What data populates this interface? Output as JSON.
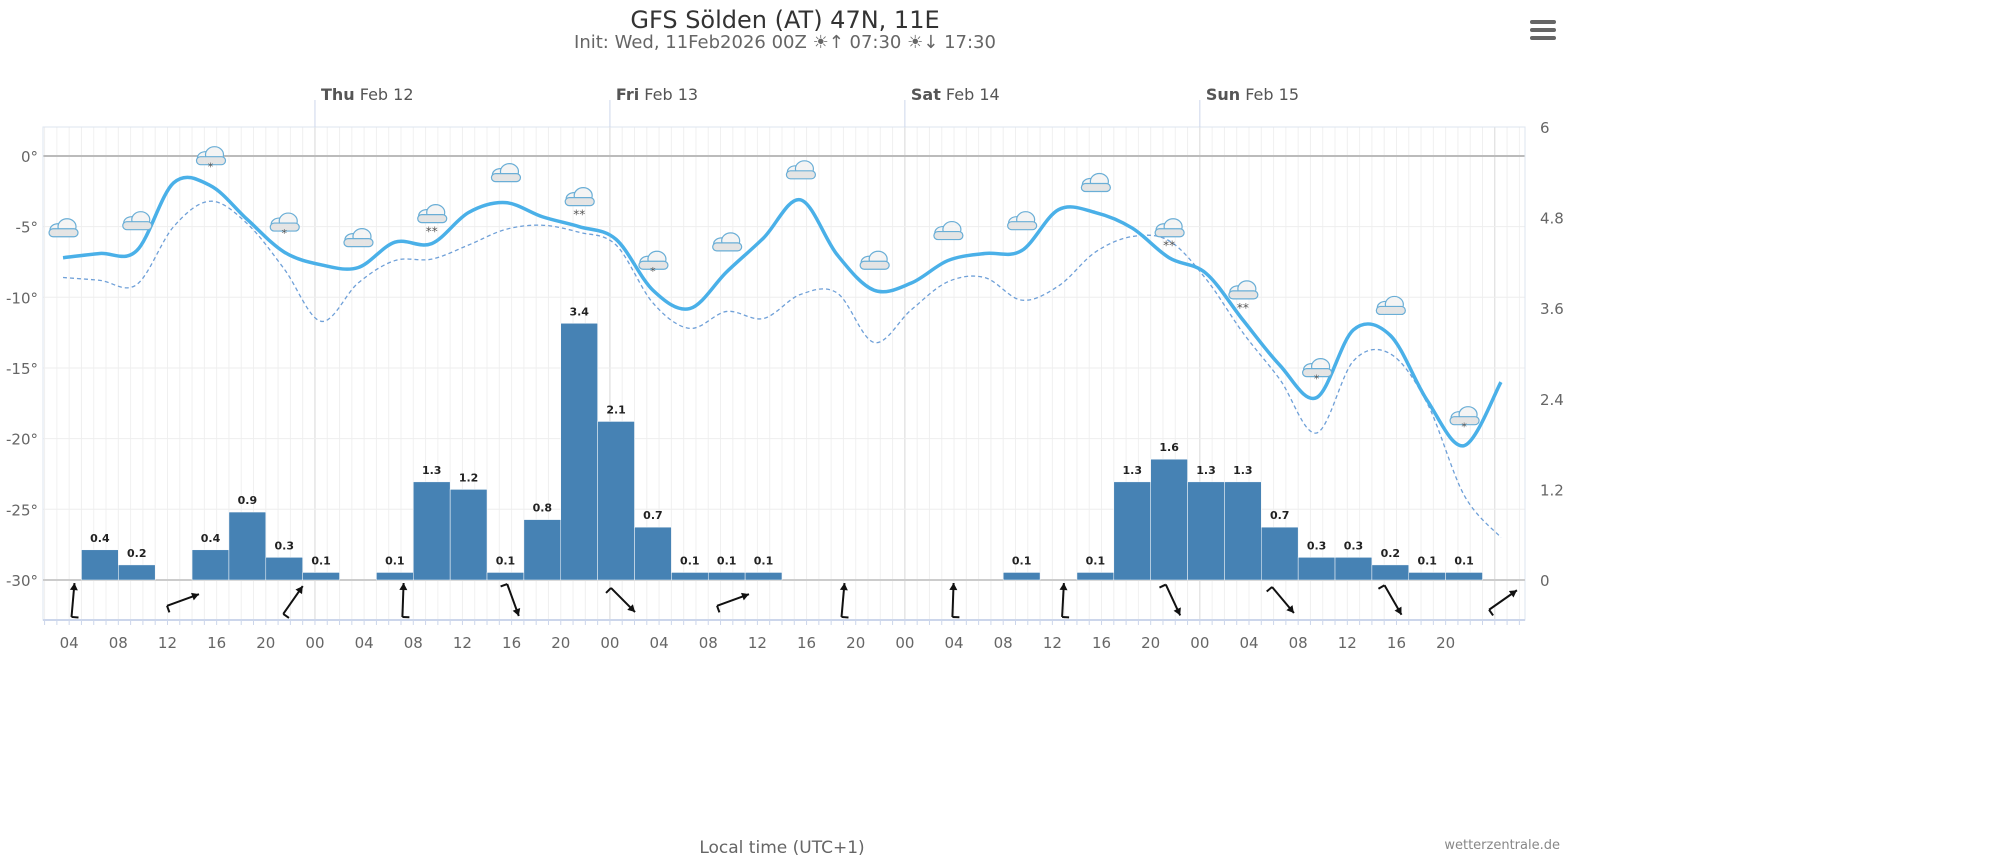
{
  "header": {
    "title": "GFS Sölden (AT) 47N, 11E",
    "init": "Init: Wed, 11Feb2026 00Z",
    "sunrise_icon": "sunrise-icon",
    "sunrise": "07:30",
    "sunset_icon": "sunset-icon",
    "sunset": "17:30"
  },
  "menu_icon": "hamburger-menu-icon",
  "credit": "wetterzentrale.de",
  "colors": {
    "temperature": "#4ab0e8",
    "dashed": "#6fa0d8",
    "precipitation": "#4682b4"
  },
  "chart_data": {
    "type": "line+bar",
    "xlabel": "Local time (UTC+1)",
    "x_ticks": [
      "04",
      "08",
      "12",
      "16",
      "20",
      "00",
      "04",
      "08",
      "12",
      "16",
      "20",
      "00",
      "04",
      "08",
      "12",
      "16",
      "20",
      "00",
      "04",
      "08",
      "12",
      "16",
      "20",
      "00",
      "04",
      "08",
      "12",
      "16",
      "20"
    ],
    "day_labels": [
      {
        "day": "Thu",
        "date": "Feb 12"
      },
      {
        "day": "Fri",
        "date": "Feb 13"
      },
      {
        "day": "Sat",
        "date": "Feb 14"
      },
      {
        "day": "Sun",
        "date": "Feb 15"
      }
    ],
    "y_left": {
      "ticks": [
        "0°",
        "-5°",
        "-10°",
        "-15°",
        "-20°",
        "-25°",
        "-30°"
      ],
      "range": [
        -32,
        2
      ]
    },
    "y_right": {
      "ticks": [
        "6",
        "4.8",
        "3.6",
        "2.4",
        "1.2",
        "0"
      ],
      "range": [
        0,
        6
      ]
    },
    "temperature_start": "2026-02-11 04:00",
    "step_hours": 3,
    "temperature": [
      -7.2,
      -6.9,
      -6.7,
      -1.9,
      -2.1,
      -4.5,
      -6.8,
      -7.7,
      -7.9,
      -6.1,
      -6.2,
      -4.0,
      -3.3,
      -4.3,
      -5.0,
      -5.9,
      -9.5,
      -10.8,
      -8.2,
      -5.8,
      -3.1,
      -7.0,
      -9.5,
      -9.0,
      -7.4,
      -6.9,
      -6.7,
      -3.8,
      -4.0,
      -5.1,
      -7.2,
      -8.3,
      -11.6,
      -14.8,
      -17.1,
      -12.3,
      -12.7,
      -17.3,
      -20.5,
      -16.0
    ],
    "temperature_dashed": [
      -8.6,
      -8.8,
      -9.1,
      -5.0,
      -3.2,
      -4.8,
      -8.0,
      -11.7,
      -9.0,
      -7.4,
      -7.3,
      -6.3,
      -5.2,
      -4.9,
      -5.4,
      -6.3,
      -10.4,
      -12.2,
      -11.0,
      -11.5,
      -9.8,
      -9.7,
      -13.2,
      -10.9,
      -8.9,
      -8.6,
      -10.2,
      -9.2,
      -6.8,
      -5.7,
      -6.0,
      -8.7,
      -12.5,
      -15.8,
      -19.6,
      -14.5,
      -14.0,
      -17.5,
      -24.0,
      -27.0
    ],
    "precipitation": [
      0.4,
      0.2,
      0,
      0.4,
      0.9,
      0.3,
      0.1,
      0,
      0.1,
      1.3,
      1.2,
      0.1,
      0.8,
      3.4,
      2.1,
      0.7,
      0.1,
      0.1,
      0.1,
      0,
      0,
      0,
      0,
      0,
      0,
      0.1,
      0,
      0.1,
      1.3,
      1.6,
      1.3,
      1.3,
      0.7,
      0.3,
      0.3,
      0.2,
      0.1,
      0.1,
      0,
      0
    ],
    "weather_icons": [
      "cloud",
      "cloud",
      "cloud-light-snow",
      "cloud-light-snow",
      "cloud",
      "cloud-snow",
      "cloud",
      "cloud-snow",
      "cloud-light-snow",
      "cloud",
      "cloud",
      "cloud",
      "cloud",
      "cloud",
      "cloud",
      "cloud-snow",
      "cloud-snow",
      "cloud-light-snow",
      "cloud",
      "cloud-light-snow"
    ],
    "wind_direction_heading_deg": [
      5,
      70,
      35,
      2,
      160,
      135,
      70,
      5,
      2,
      3,
      155,
      140,
      150,
      55
    ]
  }
}
